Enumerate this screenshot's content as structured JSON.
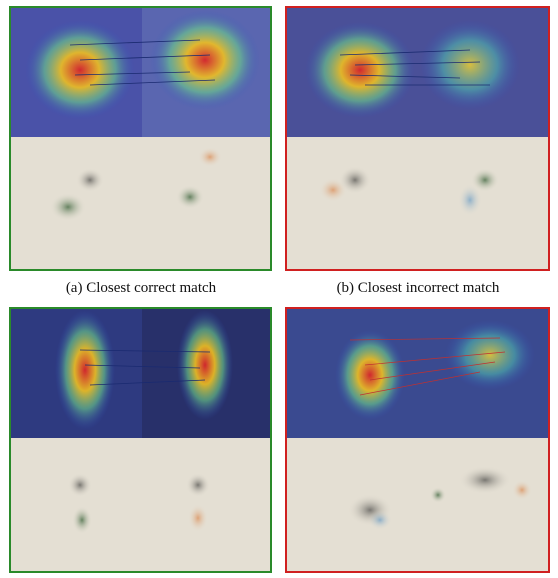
{
  "captions": [
    "(a) Closest correct match",
    "(b) Closest incorrect match"
  ]
}
